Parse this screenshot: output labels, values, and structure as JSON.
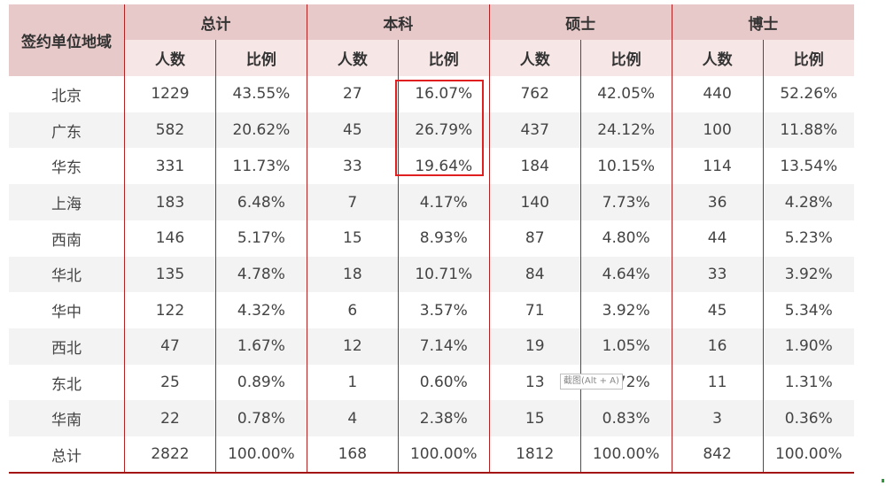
{
  "header": {
    "corner": "签约单位地域",
    "groups": [
      "总计",
      "本科",
      "硕士",
      "博士"
    ],
    "sub": [
      "人数",
      "比例",
      "人数",
      "比例",
      "人数",
      "比例",
      "人数",
      "比例"
    ]
  },
  "rows": [
    [
      "北京",
      "1229",
      "43.55%",
      "27",
      "16.07%",
      "762",
      "42.05%",
      "440",
      "52.26%"
    ],
    [
      "广东",
      "582",
      "20.62%",
      "45",
      "26.79%",
      "437",
      "24.12%",
      "100",
      "11.88%"
    ],
    [
      "华东",
      "331",
      "11.73%",
      "33",
      "19.64%",
      "184",
      "10.15%",
      "114",
      "13.54%"
    ],
    [
      "上海",
      "183",
      "6.48%",
      "7",
      "4.17%",
      "140",
      "7.73%",
      "36",
      "4.28%"
    ],
    [
      "西南",
      "146",
      "5.17%",
      "15",
      "8.93%",
      "87",
      "4.80%",
      "44",
      "5.23%"
    ],
    [
      "华北",
      "135",
      "4.78%",
      "18",
      "10.71%",
      "84",
      "4.64%",
      "33",
      "3.92%"
    ],
    [
      "华中",
      "122",
      "4.32%",
      "6",
      "3.57%",
      "71",
      "3.92%",
      "45",
      "5.34%"
    ],
    [
      "西北",
      "47",
      "1.67%",
      "12",
      "7.14%",
      "19",
      "1.05%",
      "16",
      "1.90%"
    ],
    [
      "东北",
      "25",
      "0.89%",
      "1",
      "0.60%",
      "13",
      "0.72%",
      "11",
      "1.31%"
    ],
    [
      "华南",
      "22",
      "0.78%",
      "4",
      "2.38%",
      "15",
      "0.83%",
      "3",
      "0.36%"
    ],
    [
      "总计",
      "2822",
      "100.00%",
      "168",
      "100.00%",
      "1812",
      "100.00%",
      "842",
      "100.00%"
    ]
  ],
  "tooltip": "截图(Alt + A)",
  "colors": {
    "header_dark": "#e8c9c9",
    "header_light": "#f6e6e6",
    "divider": "#b22222",
    "highlight": "#e02020",
    "stripe": "#f3f3f3"
  }
}
